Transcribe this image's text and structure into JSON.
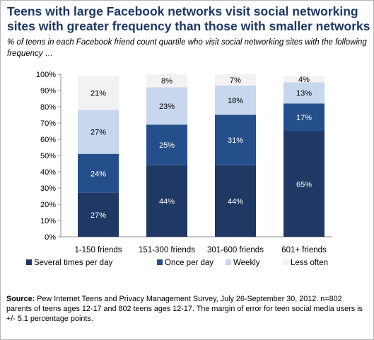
{
  "header": {
    "title": "Teens with large Facebook networks visit social networking sites with greater frequency than those with smaller networks",
    "subtitle": "% of teens in each Facebook friend count quartile who visit social networking sites with the following frequency …"
  },
  "chart_data": {
    "type": "bar",
    "stacked": true,
    "categories": [
      "1-150 friends",
      "151-300 friends",
      "301-600 friends",
      "601+ friends"
    ],
    "series": [
      {
        "name": "Several times per day",
        "color": "#1f3864",
        "values": [
          27,
          44,
          44,
          65
        ]
      },
      {
        "name": "Once per day",
        "color": "#254f8b",
        "values": [
          24,
          25,
          31,
          17
        ]
      },
      {
        "name": "Weekly",
        "color": "#c6d7ee",
        "values": [
          27,
          23,
          18,
          13
        ]
      },
      {
        "name": "Less often",
        "color": "#f2f2f2",
        "values": [
          21,
          8,
          7,
          4
        ]
      }
    ],
    "value_labels": [
      [
        "27%",
        "24%",
        "27%",
        "21%"
      ],
      [
        "44%",
        "25%",
        "23%",
        "8%"
      ],
      [
        "44%",
        "31%",
        "18%",
        "7%"
      ],
      [
        "65%",
        "17%",
        "13%",
        "4%"
      ]
    ],
    "label_colors": [
      "#ffffff",
      "#ffffff",
      "#000000",
      "#000000"
    ],
    "ylim": [
      0,
      100
    ],
    "yticks": [
      "0%",
      "10%",
      "20%",
      "30%",
      "40%",
      "50%",
      "60%",
      "70%",
      "80%",
      "90%",
      "100%"
    ],
    "legend_position": "bottom",
    "grid": false
  },
  "source": {
    "label": "Source:",
    "text": " Pew Internet Teens and Privacy Management Survey, July 26-September 30, 2012. n=802 parents of teens ages 12-17 and 802 teens ages 12-17.  The margin of error for teen social media users is +/- 5.1 percentage points."
  }
}
